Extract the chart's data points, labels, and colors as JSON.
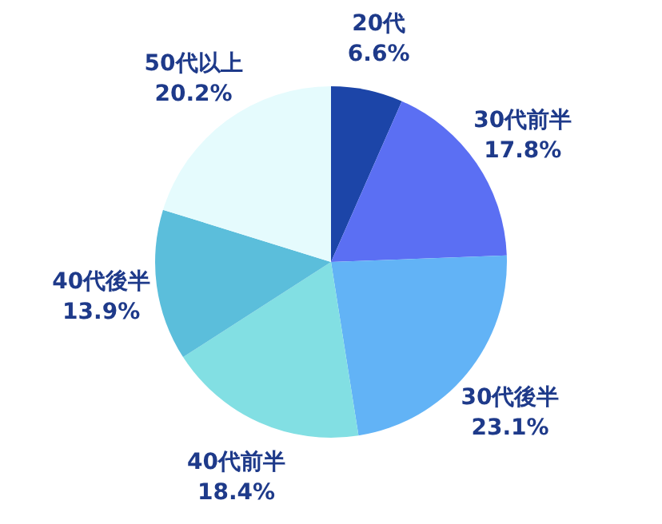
{
  "chart_data": {
    "type": "pie",
    "categories": [
      "20代",
      "30代前半",
      "30代後半",
      "40代前半",
      "40代後半",
      "50代以上"
    ],
    "values": [
      6.6,
      17.8,
      23.1,
      18.4,
      13.9,
      20.2
    ],
    "value_labels": [
      "6.6%",
      "17.8%",
      "23.1%",
      "18.4%",
      "13.9%",
      "20.2%"
    ],
    "colors": [
      "#1c45a8",
      "#5b6ff3",
      "#62b3f6",
      "#82dfe3",
      "#5bbedb",
      "#e5fbfd"
    ]
  }
}
